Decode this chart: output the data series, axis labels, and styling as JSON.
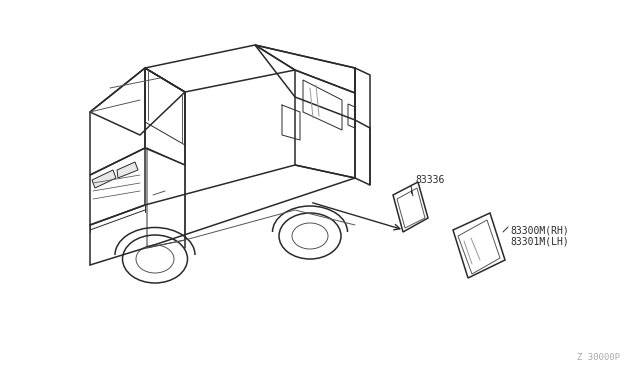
{
  "background_color": "#ffffff",
  "line_color": "#2a2a2a",
  "med_line_color": "#555555",
  "light_line_color": "#999999",
  "label_83336": "83336",
  "label_rh": "83300M(RH)",
  "label_lh": "83301M(LH)",
  "footer_text": "Z 30000P",
  "lw_main": 1.1,
  "lw_detail": 0.7,
  "label_fontsize": 7.0,
  "footer_fontsize": 6.5
}
